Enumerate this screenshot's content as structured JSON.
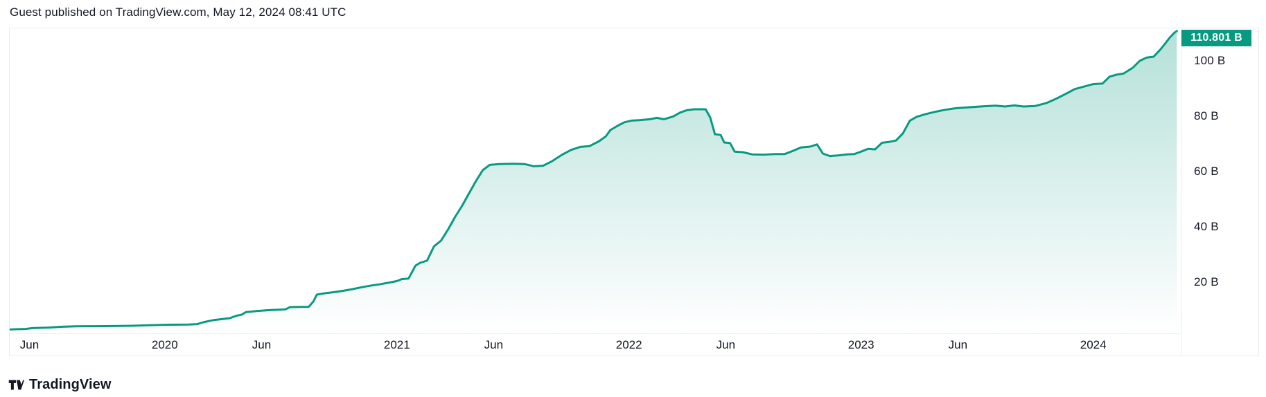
{
  "header": {
    "attribution": "Guest published on TradingView.com, May 12, 2024 08:41 UTC"
  },
  "footer": {
    "brand": "TradingView"
  },
  "colors": {
    "accent_teal": "#089981",
    "text_dark": "#131722",
    "fill_top": "#089981",
    "fill_top_opacity": 0.3,
    "fill_bottom_opacity": 0.0,
    "badge_bg": "#089981",
    "badge_text": "#ffffff",
    "separator": "#e7eaef",
    "card_border": "#e9ebf1"
  },
  "chart_data": {
    "type": "area",
    "title": "",
    "y_unit": "B",
    "x_unit": "decimal_year",
    "xlim": [
      2019.332,
      2024.377
    ],
    "ylim": [
      1.5,
      111.75
    ],
    "grid": false,
    "legend": false,
    "last_value": 110.801,
    "last_value_label": "110.801 B",
    "y_ticks": [
      {
        "v": 100,
        "label": "100 B"
      },
      {
        "v": 80,
        "label": "80 B"
      },
      {
        "v": 60,
        "label": "60 B"
      },
      {
        "v": 40,
        "label": "40 B"
      },
      {
        "v": 20,
        "label": "20 B"
      }
    ],
    "x_ticks": [
      {
        "t": 2019.417,
        "label": "Jun"
      },
      {
        "t": 2020.0,
        "label": "2020"
      },
      {
        "t": 2020.417,
        "label": "Jun"
      },
      {
        "t": 2021.0,
        "label": "2021"
      },
      {
        "t": 2021.417,
        "label": "Jun"
      },
      {
        "t": 2022.0,
        "label": "2022"
      },
      {
        "t": 2022.417,
        "label": "Jun"
      },
      {
        "t": 2023.0,
        "label": "2023"
      },
      {
        "t": 2023.417,
        "label": "Jun"
      },
      {
        "t": 2024.0,
        "label": "2024"
      }
    ],
    "points": [
      [
        2019.332,
        2.9
      ],
      [
        2019.36,
        3.0
      ],
      [
        2019.4,
        3.1
      ],
      [
        2019.43,
        3.4
      ],
      [
        2019.5,
        3.6
      ],
      [
        2019.56,
        3.9
      ],
      [
        2019.62,
        4.05
      ],
      [
        2019.7,
        4.1
      ],
      [
        2019.78,
        4.15
      ],
      [
        2019.86,
        4.25
      ],
      [
        2019.93,
        4.45
      ],
      [
        2020.0,
        4.6
      ],
      [
        2020.06,
        4.65
      ],
      [
        2020.1,
        4.7
      ],
      [
        2020.14,
        4.85
      ],
      [
        2020.17,
        5.6
      ],
      [
        2020.21,
        6.3
      ],
      [
        2020.24,
        6.6
      ],
      [
        2020.28,
        7.0
      ],
      [
        2020.31,
        7.9
      ],
      [
        2020.33,
        8.2
      ],
      [
        2020.35,
        9.2
      ],
      [
        2020.4,
        9.6
      ],
      [
        2020.45,
        9.9
      ],
      [
        2020.5,
        10.1
      ],
      [
        2020.52,
        10.2
      ],
      [
        2020.54,
        11.0
      ],
      [
        2020.58,
        11.05
      ],
      [
        2020.62,
        11.1
      ],
      [
        2020.64,
        13.0
      ],
      [
        2020.655,
        15.5
      ],
      [
        2020.69,
        16.0
      ],
      [
        2020.73,
        16.4
      ],
      [
        2020.77,
        16.9
      ],
      [
        2020.81,
        17.5
      ],
      [
        2020.85,
        18.2
      ],
      [
        2020.89,
        18.8
      ],
      [
        2020.93,
        19.3
      ],
      [
        2020.97,
        19.9
      ],
      [
        2021.0,
        20.4
      ],
      [
        2021.02,
        21.1
      ],
      [
        2021.05,
        21.3
      ],
      [
        2021.08,
        26.0
      ],
      [
        2021.1,
        27.0
      ],
      [
        2021.13,
        27.8
      ],
      [
        2021.16,
        33.0
      ],
      [
        2021.19,
        35.0
      ],
      [
        2021.22,
        39.0
      ],
      [
        2021.25,
        43.5
      ],
      [
        2021.28,
        47.5
      ],
      [
        2021.31,
        52.0
      ],
      [
        2021.34,
        56.5
      ],
      [
        2021.37,
        60.5
      ],
      [
        2021.4,
        62.4
      ],
      [
        2021.44,
        62.7
      ],
      [
        2021.5,
        62.8
      ],
      [
        2021.55,
        62.7
      ],
      [
        2021.59,
        61.9
      ],
      [
        2021.63,
        62.1
      ],
      [
        2021.67,
        63.8
      ],
      [
        2021.71,
        66.0
      ],
      [
        2021.75,
        67.8
      ],
      [
        2021.79,
        68.9
      ],
      [
        2021.83,
        69.2
      ],
      [
        2021.87,
        70.9
      ],
      [
        2021.9,
        72.7
      ],
      [
        2021.92,
        75.0
      ],
      [
        2021.95,
        76.5
      ],
      [
        2021.98,
        77.8
      ],
      [
        2022.01,
        78.4
      ],
      [
        2022.05,
        78.6
      ],
      [
        2022.09,
        78.9
      ],
      [
        2022.12,
        79.4
      ],
      [
        2022.15,
        78.9
      ],
      [
        2022.19,
        79.9
      ],
      [
        2022.22,
        81.3
      ],
      [
        2022.25,
        82.2
      ],
      [
        2022.28,
        82.5
      ],
      [
        2022.33,
        82.5
      ],
      [
        2022.35,
        79.5
      ],
      [
        2022.37,
        73.5
      ],
      [
        2022.395,
        73.2
      ],
      [
        2022.41,
        70.5
      ],
      [
        2022.435,
        70.3
      ],
      [
        2022.455,
        67.2
      ],
      [
        2022.49,
        67.0
      ],
      [
        2022.53,
        66.2
      ],
      [
        2022.58,
        66.1
      ],
      [
        2022.63,
        66.3
      ],
      [
        2022.67,
        66.3
      ],
      [
        2022.71,
        67.6
      ],
      [
        2022.74,
        68.7
      ],
      [
        2022.78,
        69.0
      ],
      [
        2022.81,
        69.8
      ],
      [
        2022.835,
        66.5
      ],
      [
        2022.865,
        65.6
      ],
      [
        2022.9,
        65.8
      ],
      [
        2022.94,
        66.2
      ],
      [
        2022.97,
        66.3
      ],
      [
        2023.0,
        67.2
      ],
      [
        2023.03,
        68.2
      ],
      [
        2023.06,
        68.0
      ],
      [
        2023.09,
        70.4
      ],
      [
        2023.12,
        70.7
      ],
      [
        2023.15,
        71.2
      ],
      [
        2023.18,
        73.8
      ],
      [
        2023.21,
        78.4
      ],
      [
        2023.24,
        79.8
      ],
      [
        2023.28,
        80.8
      ],
      [
        2023.32,
        81.6
      ],
      [
        2023.36,
        82.3
      ],
      [
        2023.41,
        82.9
      ],
      [
        2023.46,
        83.2
      ],
      [
        2023.53,
        83.6
      ],
      [
        2023.58,
        83.8
      ],
      [
        2023.62,
        83.5
      ],
      [
        2023.66,
        83.9
      ],
      [
        2023.7,
        83.5
      ],
      [
        2023.75,
        83.7
      ],
      [
        2023.8,
        84.8
      ],
      [
        2023.84,
        86.3
      ],
      [
        2023.88,
        88.0
      ],
      [
        2023.92,
        89.8
      ],
      [
        2023.96,
        90.7
      ],
      [
        2024.0,
        91.6
      ],
      [
        2024.04,
        91.8
      ],
      [
        2024.07,
        94.3
      ],
      [
        2024.1,
        95.0
      ],
      [
        2024.13,
        95.4
      ],
      [
        2024.17,
        97.5
      ],
      [
        2024.2,
        100.0
      ],
      [
        2024.23,
        101.2
      ],
      [
        2024.26,
        101.5
      ],
      [
        2024.29,
        104.2
      ],
      [
        2024.31,
        106.3
      ],
      [
        2024.33,
        108.5
      ],
      [
        2024.35,
        110.2
      ],
      [
        2024.36,
        110.801
      ]
    ]
  }
}
